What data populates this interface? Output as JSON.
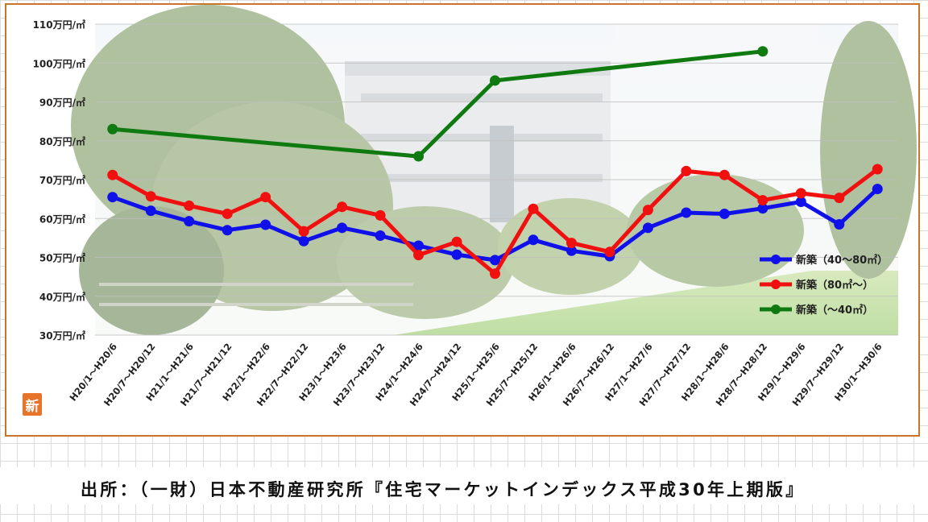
{
  "chart_data": {
    "type": "line",
    "categories": [
      "H20/1～H20/6",
      "H20/7～H20/12",
      "H21/1～H21/6",
      "H21/7～H21/12",
      "H22/1～H22/6",
      "H22/7～H22/12",
      "H23/1～H23/6",
      "H23/7～H23/12",
      "H24/1～H24/6",
      "H24/7～H24/12",
      "H25/1～H25/6",
      "H25/7～H25/12",
      "H26/1～H26/6",
      "H26/7～H26/12",
      "H27/1～H27/6",
      "H27/7～H27/12",
      "H28/1～H28/6",
      "H28/7～H28/12",
      "H29/1～H29/6",
      "H29/7～H29/12",
      "H30/1～H30/6"
    ],
    "yticks": [
      "30万円/㎡",
      "40万円/㎡",
      "50万円/㎡",
      "60万円/㎡",
      "70万円/㎡",
      "80万円/㎡",
      "90万円/㎡",
      "100万円/㎡",
      "110万円/㎡"
    ],
    "ylim": [
      30,
      110
    ],
    "legend_position": "right",
    "series": [
      {
        "name": "新築（40～80㎡）",
        "color": "#1010e8",
        "values": [
          65.5,
          62,
          59.3,
          57,
          58.4,
          54.2,
          57.6,
          55.6,
          53,
          50.7,
          49.3,
          54.5,
          51.7,
          50.3,
          57.6,
          61.5,
          61.2,
          62.6,
          64.3,
          58.5,
          67.6
        ]
      },
      {
        "name": "新築（80㎡～）",
        "color": "#f01010",
        "values": [
          71.2,
          65.7,
          63.3,
          61.2,
          65.5,
          56.7,
          63,
          60.8,
          50.6,
          54,
          45.8,
          62.5,
          53.7,
          51.4,
          62.2,
          72.2,
          71.2,
          64.7,
          66.5,
          65.3,
          72.7
        ]
      },
      {
        "name": "新築（～40㎡）",
        "color": "#0f7a10",
        "values": [
          83,
          null,
          null,
          null,
          null,
          null,
          null,
          null,
          76,
          null,
          95.5,
          null,
          null,
          null,
          null,
          null,
          null,
          103,
          null,
          null,
          null
        ]
      }
    ]
  },
  "logo_char": "新",
  "source_note": "出所：（一財）日本不動産研究所『住宅マーケットインデックス平成30年上期版』"
}
